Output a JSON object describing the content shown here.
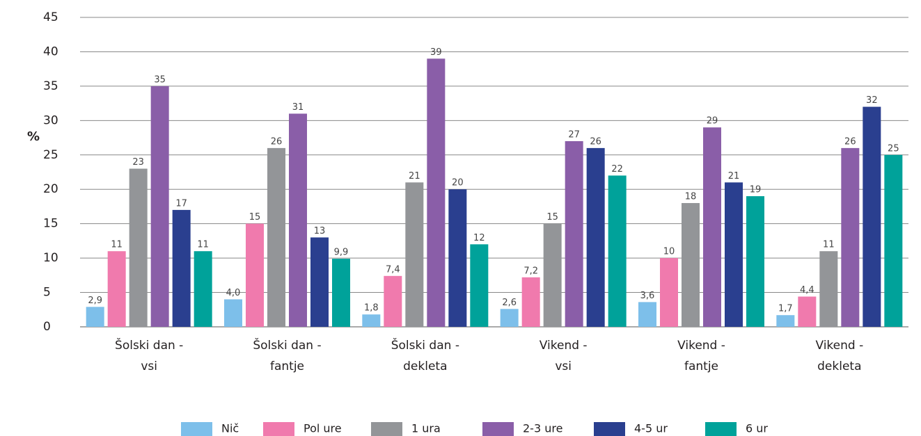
{
  "chart_data": {
    "type": "bar",
    "y_label": "%",
    "categories": [
      [
        "Šolski dan -",
        "vsi"
      ],
      [
        "Šolski dan -",
        "fantje"
      ],
      [
        "Šolski dan -",
        "dekleta"
      ],
      [
        "Vikend -",
        "vsi"
      ],
      [
        "Vikend -",
        "fantje"
      ],
      [
        "Vikend -",
        "dekleta"
      ]
    ],
    "series": [
      {
        "name": "Nič",
        "color": "#7dbfea",
        "values": [
          2.9,
          4.0,
          1.8,
          2.6,
          3.6,
          1.7
        ],
        "value_labels": [
          "2,9",
          "4,0",
          "1,8",
          "2,6",
          "3,6",
          "1,7"
        ]
      },
      {
        "name": "Pol ure",
        "color": "#f07aad",
        "values": [
          11,
          15,
          7.4,
          7.2,
          10,
          4.4
        ],
        "value_labels": [
          "11",
          "15",
          "7,4",
          "7,2",
          "10",
          "4,4"
        ]
      },
      {
        "name": "1 ura",
        "color": "#939598",
        "values": [
          23,
          26,
          21,
          15,
          18,
          11
        ],
        "value_labels": [
          "23",
          "26",
          "21",
          "15",
          "18",
          "11"
        ]
      },
      {
        "name": "2-3 ure",
        "color": "#8a5ea8",
        "values": [
          35,
          31,
          39,
          27,
          29,
          26
        ],
        "value_labels": [
          "35",
          "31",
          "39",
          "27",
          "29",
          "26"
        ]
      },
      {
        "name": "4-5 ur",
        "color": "#2a3f8f",
        "values": [
          17,
          13,
          20,
          26,
          21,
          32
        ],
        "value_labels": [
          "17",
          "13",
          "20",
          "26",
          "21",
          "32"
        ]
      },
      {
        "name": "6 ur",
        "color": "#00a29a",
        "values": [
          11,
          9.9,
          12,
          22,
          19,
          25
        ],
        "value_labels": [
          "11",
          "9,9",
          "12",
          "22",
          "19",
          "25"
        ]
      }
    ],
    "ylim": [
      0,
      45
    ],
    "yticks": [
      0,
      5,
      10,
      15,
      20,
      25,
      30,
      35,
      40,
      45
    ],
    "grid": true
  }
}
